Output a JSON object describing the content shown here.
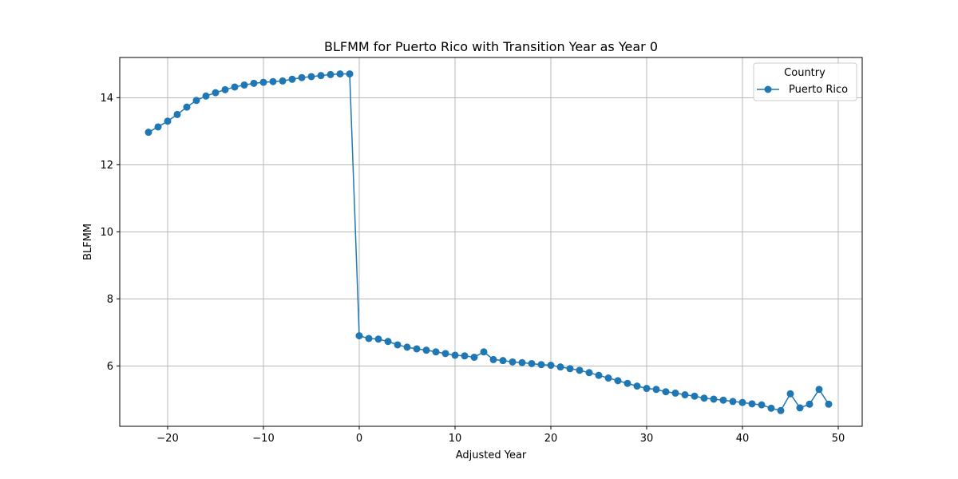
{
  "chart_data": {
    "type": "line",
    "title": "BLFMM for Puerto Rico with Transition Year as Year 0",
    "xlabel": "Adjusted Year",
    "ylabel": "BLFMM",
    "xlim": [
      -25,
      52.5
    ],
    "ylim": [
      4.2,
      15.2
    ],
    "xticks": [
      -20,
      -10,
      0,
      10,
      20,
      30,
      40,
      50
    ],
    "xtick_labels": [
      "−20",
      "−10",
      "0",
      "10",
      "20",
      "30",
      "40",
      "50"
    ],
    "yticks": [
      6,
      8,
      10,
      12,
      14
    ],
    "ytick_labels": [
      "6",
      "8",
      "10",
      "12",
      "14"
    ],
    "grid": true,
    "legend": {
      "title": "Country",
      "placement": "top-right"
    },
    "color": "#1f77b4",
    "series": [
      {
        "name": "Puerto Rico",
        "x": [
          -22,
          -21,
          -20,
          -19,
          -18,
          -17,
          -16,
          -15,
          -14,
          -13,
          -12,
          -11,
          -10,
          -9,
          -8,
          -7,
          -6,
          -5,
          -4,
          -3,
          -2,
          -1,
          0,
          1,
          2,
          3,
          4,
          5,
          6,
          7,
          8,
          9,
          10,
          11,
          12,
          13,
          14,
          15,
          16,
          17,
          18,
          19,
          20,
          21,
          22,
          23,
          24,
          25,
          26,
          27,
          28,
          29,
          30,
          31,
          32,
          33,
          34,
          35,
          36,
          37,
          38,
          39,
          40,
          41,
          42,
          43,
          44,
          45,
          46,
          47,
          48,
          49
        ],
        "y": [
          12.97,
          13.13,
          13.3,
          13.5,
          13.72,
          13.92,
          14.05,
          14.15,
          14.24,
          14.32,
          14.38,
          14.43,
          14.46,
          14.48,
          14.5,
          14.55,
          14.6,
          14.63,
          14.66,
          14.69,
          14.71,
          14.71,
          6.9,
          6.82,
          6.8,
          6.73,
          6.63,
          6.56,
          6.51,
          6.47,
          6.42,
          6.37,
          6.32,
          6.3,
          6.26,
          6.42,
          6.19,
          6.16,
          6.12,
          6.1,
          6.07,
          6.04,
          6.02,
          5.97,
          5.92,
          5.87,
          5.8,
          5.72,
          5.64,
          5.56,
          5.48,
          5.4,
          5.33,
          5.3,
          5.23,
          5.19,
          5.14,
          5.1,
          5.04,
          5.01,
          4.98,
          4.94,
          4.91,
          4.87,
          4.84,
          4.74,
          4.67,
          5.17,
          4.75,
          4.86,
          5.3,
          4.86
        ]
      }
    ]
  }
}
